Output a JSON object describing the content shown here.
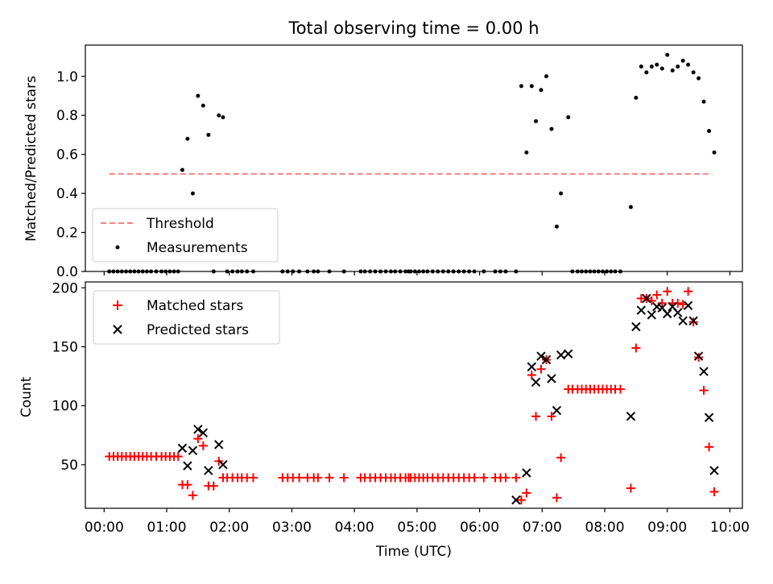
{
  "chart_data": [
    {
      "type": "scatter",
      "title": "Total observing time = 0.00 h",
      "xlabel": "",
      "ylabel": "Matched/Predicted stars",
      "xlim": [
        -0.3,
        10.2
      ],
      "ylim": [
        0,
        1.16
      ],
      "yticks": [
        0.0,
        0.2,
        0.4,
        0.6,
        0.8,
        1.0
      ],
      "ytick_labels": [
        "0.0",
        "0.2",
        "0.4",
        "0.6",
        "0.8",
        "1.0"
      ],
      "legend_position": "lower-left",
      "series": [
        {
          "name": "Threshold",
          "kind": "dashed-line",
          "color": "#ff8080",
          "x": [
            0.083,
            9.717
          ],
          "y": [
            0.5,
            0.5
          ]
        },
        {
          "name": "Measurements",
          "kind": "dot",
          "color": "#000000",
          "x": [
            0.083,
            0.15,
            0.217,
            0.283,
            0.35,
            0.417,
            0.483,
            0.55,
            0.617,
            0.683,
            0.75,
            0.833,
            0.917,
            0.983,
            1.05,
            1.117,
            1.183,
            1.25,
            1.333,
            1.417,
            1.5,
            1.583,
            1.667,
            1.75,
            1.833,
            1.9,
            1.967,
            2.05,
            2.133,
            2.2,
            2.283,
            2.383,
            2.85,
            2.933,
            3.017,
            3.117,
            3.25,
            3.35,
            3.417,
            3.6,
            3.833,
            4.1,
            4.167,
            4.25,
            4.333,
            4.417,
            4.5,
            4.583,
            4.65,
            4.733,
            4.817,
            4.867,
            4.9,
            4.967,
            5.033,
            5.1,
            5.167,
            5.25,
            5.333,
            5.417,
            5.5,
            5.583,
            5.667,
            5.75,
            5.833,
            5.917,
            6.067,
            6.25,
            6.333,
            6.417,
            6.583,
            6.667,
            6.75,
            6.833,
            6.9,
            6.983,
            7.067,
            7.15,
            7.233,
            7.3,
            7.417,
            7.483,
            7.567,
            7.633,
            7.7,
            7.767,
            7.833,
            7.9,
            7.967,
            8.033,
            8.1,
            8.167,
            8.25,
            8.417,
            8.5,
            8.583,
            8.667,
            8.75,
            8.833,
            8.917,
            9.0,
            9.083,
            9.167,
            9.25,
            9.333,
            9.417,
            9.5,
            9.583,
            9.667,
            9.75
          ],
          "y": [
            0,
            0,
            0,
            0,
            0,
            0,
            0,
            0,
            0,
            0,
            0,
            0,
            0,
            0,
            0,
            0,
            0,
            0.52,
            0.68,
            0.4,
            0.9,
            0.85,
            0.7,
            0,
            0.8,
            0.79,
            0,
            0,
            0,
            0,
            0,
            0,
            0,
            0,
            0,
            0,
            0,
            0,
            0,
            0,
            0,
            0,
            0,
            0,
            0,
            0,
            0,
            0,
            0,
            0,
            0,
            0,
            0,
            0,
            0,
            0,
            0,
            0,
            0,
            0,
            0,
            0,
            0,
            0,
            0,
            0,
            0,
            0,
            0,
            0,
            0,
            0.95,
            0.61,
            0.95,
            0.77,
            0.93,
            1.0,
            0.73,
            0.23,
            0.4,
            0.79,
            0,
            0,
            0,
            0,
            0,
            0,
            0,
            0,
            0,
            0,
            0,
            0,
            0.33,
            0.89,
            1.05,
            1.02,
            1.05,
            1.06,
            1.04,
            1.11,
            1.03,
            1.05,
            1.08,
            1.06,
            1.02,
            0.99,
            0.87,
            0.72,
            0.61
          ]
        }
      ]
    },
    {
      "type": "scatter",
      "title": "",
      "xlabel": "Time (UTC)",
      "ylabel": "Count",
      "xlim": [
        -0.3,
        10.2
      ],
      "ylim": [
        13,
        205
      ],
      "yticks": [
        50,
        100,
        150,
        200
      ],
      "ytick_labels": [
        "50",
        "100",
        "150",
        "200"
      ],
      "xticks": [
        0,
        1,
        2,
        3,
        4,
        5,
        6,
        7,
        8,
        9,
        10
      ],
      "xtick_labels": [
        "00:00",
        "01:00",
        "02:00",
        "03:00",
        "04:00",
        "05:00",
        "06:00",
        "07:00",
        "08:00",
        "09:00",
        "10:00"
      ],
      "legend_position": "upper-left",
      "series": [
        {
          "name": "Matched stars",
          "kind": "plus",
          "color": "#ff0000",
          "x": [
            0.083,
            0.15,
            0.217,
            0.283,
            0.35,
            0.417,
            0.483,
            0.55,
            0.617,
            0.683,
            0.75,
            0.833,
            0.917,
            0.983,
            1.05,
            1.117,
            1.183,
            1.25,
            1.333,
            1.417,
            1.5,
            1.583,
            1.667,
            1.75,
            1.833,
            1.9,
            1.967,
            2.05,
            2.133,
            2.2,
            2.283,
            2.383,
            2.85,
            2.933,
            3.017,
            3.117,
            3.25,
            3.35,
            3.417,
            3.6,
            3.833,
            4.1,
            4.167,
            4.25,
            4.333,
            4.417,
            4.5,
            4.583,
            4.65,
            4.733,
            4.817,
            4.867,
            4.9,
            4.967,
            5.033,
            5.1,
            5.167,
            5.25,
            5.333,
            5.417,
            5.5,
            5.583,
            5.667,
            5.75,
            5.833,
            5.917,
            6.067,
            6.25,
            6.333,
            6.417,
            6.583,
            6.667,
            6.75,
            6.833,
            6.9,
            6.983,
            7.067,
            7.15,
            7.233,
            7.3,
            7.417,
            7.483,
            7.567,
            7.633,
            7.7,
            7.767,
            7.833,
            7.9,
            7.967,
            8.033,
            8.1,
            8.167,
            8.25,
            8.417,
            8.5,
            8.583,
            8.667,
            8.75,
            8.833,
            8.917,
            9.0,
            9.083,
            9.167,
            9.25,
            9.333,
            9.417,
            9.5,
            9.583,
            9.667,
            9.75
          ],
          "y": [
            57,
            57,
            57,
            57,
            57,
            57,
            57,
            57,
            57,
            57,
            57,
            57,
            57,
            57,
            57,
            57,
            57,
            33,
            33,
            24,
            72,
            66,
            32,
            32,
            53,
            39,
            39,
            39,
            39,
            39,
            39,
            39,
            39,
            39,
            39,
            39,
            39,
            39,
            39,
            39,
            39,
            39,
            39,
            39,
            39,
            39,
            39,
            39,
            39,
            39,
            39,
            39,
            39,
            39,
            39,
            39,
            39,
            39,
            39,
            39,
            39,
            39,
            39,
            39,
            39,
            39,
            39,
            39,
            39,
            39,
            39,
            20,
            26,
            126,
            91,
            131,
            139,
            91,
            22,
            56,
            114,
            114,
            114,
            114,
            114,
            114,
            114,
            114,
            114,
            114,
            114,
            114,
            114,
            30,
            149,
            191,
            191,
            189,
            194,
            187,
            197,
            187,
            187,
            186,
            197,
            171,
            141,
            113,
            65,
            27
          ]
        },
        {
          "name": "Predicted stars",
          "kind": "cross",
          "color": "#000000",
          "x": [
            1.25,
            1.333,
            1.417,
            1.5,
            1.583,
            1.667,
            1.833,
            1.9,
            6.583,
            6.75,
            6.833,
            6.9,
            6.983,
            7.067,
            7.15,
            7.233,
            7.3,
            7.417,
            8.417,
            8.5,
            8.583,
            8.667,
            8.75,
            8.833,
            8.917,
            9.0,
            9.083,
            9.167,
            9.25,
            9.333,
            9.417,
            9.5,
            9.583,
            9.667,
            9.75
          ],
          "y": [
            64,
            49,
            62,
            80,
            77,
            45,
            67,
            50,
            20,
            43,
            133,
            120,
            142,
            139,
            123,
            96,
            143,
            144,
            91,
            167,
            181,
            191,
            177,
            184,
            183,
            178,
            184,
            179,
            172,
            185,
            172,
            142,
            129,
            90,
            45
          ]
        }
      ]
    }
  ]
}
